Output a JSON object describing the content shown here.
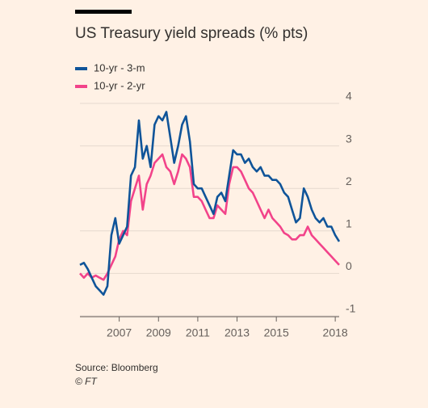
{
  "chart_data": {
    "type": "line",
    "title": "US Treasury yield spreads (% pts)",
    "source": "Source: Bloomberg",
    "credit": "© FT",
    "x": [
      2005.0,
      2005.2,
      2005.4,
      2005.6,
      2005.8,
      2006.0,
      2006.2,
      2006.4,
      2006.6,
      2006.8,
      2007.0,
      2007.2,
      2007.4,
      2007.6,
      2007.8,
      2008.0,
      2008.2,
      2008.4,
      2008.6,
      2008.8,
      2009.0,
      2009.2,
      2009.4,
      2009.6,
      2009.8,
      2010.0,
      2010.2,
      2010.4,
      2010.6,
      2010.8,
      2011.0,
      2011.2,
      2011.4,
      2011.6,
      2011.8,
      2012.0,
      2012.2,
      2012.4,
      2012.6,
      2012.8,
      2013.0,
      2013.2,
      2013.4,
      2013.6,
      2013.8,
      2014.0,
      2014.2,
      2014.4,
      2014.6,
      2014.8,
      2015.0,
      2015.2,
      2015.4,
      2015.6,
      2015.8,
      2016.0,
      2016.2,
      2016.4,
      2016.6,
      2016.8,
      2017.0,
      2017.2,
      2017.4,
      2017.6,
      2017.8,
      2018.0,
      2018.2
    ],
    "series": [
      {
        "name": "10-yr - 3-m",
        "color": "#0f5499",
        "values": [
          0.2,
          0.25,
          0.1,
          -0.1,
          -0.3,
          -0.4,
          -0.5,
          -0.3,
          0.9,
          1.3,
          0.7,
          0.9,
          1.1,
          2.3,
          2.5,
          3.6,
          2.7,
          3.0,
          2.5,
          3.5,
          3.7,
          3.6,
          3.8,
          3.2,
          2.6,
          3.0,
          3.5,
          3.7,
          3.1,
          2.1,
          2.0,
          2.0,
          1.8,
          1.6,
          1.4,
          1.8,
          1.9,
          1.7,
          2.3,
          2.9,
          2.8,
          2.8,
          2.6,
          2.7,
          2.5,
          2.4,
          2.5,
          2.3,
          2.3,
          2.2,
          2.2,
          2.1,
          1.9,
          1.8,
          1.5,
          1.2,
          1.3,
          2.0,
          1.8,
          1.5,
          1.3,
          1.2,
          1.3,
          1.1,
          1.1,
          0.9,
          0.75
        ]
      },
      {
        "name": "10-yr - 2-yr",
        "color": "#f2438a",
        "values": [
          0.0,
          -0.1,
          0.0,
          -0.1,
          -0.05,
          -0.1,
          -0.15,
          0.0,
          0.2,
          0.4,
          0.8,
          1.0,
          0.9,
          1.7,
          2.0,
          2.3,
          1.5,
          2.1,
          2.3,
          2.6,
          2.7,
          2.8,
          2.5,
          2.4,
          2.1,
          2.4,
          2.8,
          2.7,
          2.5,
          1.8,
          1.8,
          1.7,
          1.5,
          1.3,
          1.3,
          1.6,
          1.5,
          1.4,
          2.1,
          2.5,
          2.5,
          2.4,
          2.2,
          2.0,
          1.9,
          1.7,
          1.5,
          1.3,
          1.5,
          1.3,
          1.2,
          1.1,
          0.95,
          0.9,
          0.8,
          0.8,
          0.9,
          0.9,
          1.1,
          0.9,
          0.8,
          0.7,
          0.6,
          0.5,
          0.4,
          0.3,
          0.2
        ]
      }
    ],
    "xlim": [
      2005.0,
      2018.2
    ],
    "xticks": [
      2007,
      2009,
      2011,
      2013,
      2015,
      2018
    ],
    "ylim": [
      -1,
      4
    ],
    "yticks": [
      -1,
      0,
      1,
      2,
      3,
      4
    ],
    "grid": true,
    "legend": "top-left"
  }
}
